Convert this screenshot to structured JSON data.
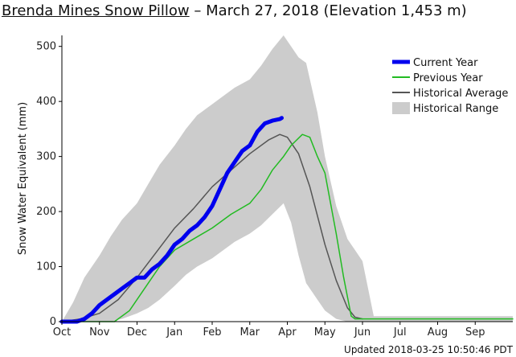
{
  "title": {
    "station": "Brenda Mines Snow Pillow",
    "rest": " – March 27, 2018 (Elevation 1,453 m)"
  },
  "footer": "Updated 2018-03-25 10:50:46 PDT",
  "chart_data": {
    "type": "line",
    "ylabel": "Snow Water Equivalent (mm)",
    "xlabel": "",
    "x_unit": "months from Oct 1",
    "ylim": [
      0,
      520
    ],
    "yticks": [
      0,
      100,
      200,
      300,
      400,
      500
    ],
    "xticks": [
      {
        "label": "Oct",
        "x": 0
      },
      {
        "label": "Nov",
        "x": 1
      },
      {
        "label": "Dec",
        "x": 2
      },
      {
        "label": "Jan",
        "x": 3
      },
      {
        "label": "Feb",
        "x": 4
      },
      {
        "label": "Mar",
        "x": 5
      },
      {
        "label": "Apr",
        "x": 6
      },
      {
        "label": "May",
        "x": 7
      },
      {
        "label": "Jun",
        "x": 8
      },
      {
        "label": "Jul",
        "x": 9
      },
      {
        "label": "Aug",
        "x": 10
      },
      {
        "label": "Sep",
        "x": 11
      }
    ],
    "xlim": [
      0,
      12
    ],
    "grid": false,
    "legend_position": "top-right",
    "legend": [
      {
        "label": "Current Year",
        "color": "#0000ee",
        "kind": "thick-line"
      },
      {
        "label": "Previous Year",
        "color": "#22bb22",
        "kind": "line"
      },
      {
        "label": "Historical Average",
        "color": "#555555",
        "kind": "line"
      },
      {
        "label": "Historical Range",
        "color": "#cccccc",
        "kind": "swatch"
      }
    ],
    "series": [
      {
        "name": "Historical Range",
        "color": "#cccccc",
        "kind": "band",
        "x": [
          0,
          0.3,
          0.6,
          1.0,
          1.3,
          1.6,
          2.0,
          2.3,
          2.6,
          3.0,
          3.3,
          3.6,
          4.0,
          4.3,
          4.6,
          5.0,
          5.3,
          5.6,
          5.9,
          6.1,
          6.3,
          6.5,
          6.8,
          7.0,
          7.3,
          7.6,
          7.8,
          8.0,
          8.3,
          12
        ],
        "lower": [
          0,
          0,
          0,
          0,
          0,
          5,
          15,
          25,
          40,
          65,
          85,
          100,
          115,
          130,
          145,
          160,
          175,
          195,
          215,
          180,
          120,
          70,
          40,
          20,
          5,
          0,
          0,
          0,
          0,
          0
        ],
        "upper": [
          0,
          35,
          80,
          120,
          155,
          185,
          215,
          250,
          285,
          320,
          350,
          375,
          395,
          410,
          425,
          440,
          465,
          495,
          520,
          500,
          480,
          470,
          380,
          300,
          210,
          150,
          130,
          110,
          10,
          10
        ]
      },
      {
        "name": "Historical Average",
        "color": "#555555",
        "width": 1.5,
        "x": [
          0,
          0.5,
          1.0,
          1.5,
          2.0,
          2.5,
          3.0,
          3.5,
          4.0,
          4.5,
          5.0,
          5.5,
          5.8,
          6.0,
          6.3,
          6.6,
          7.0,
          7.3,
          7.6,
          7.8,
          8.0
        ],
        "y": [
          0,
          5,
          15,
          40,
          80,
          125,
          170,
          205,
          245,
          275,
          305,
          330,
          340,
          335,
          305,
          245,
          140,
          75,
          25,
          8,
          5
        ]
      },
      {
        "name": "Previous Year",
        "color": "#22bb22",
        "width": 1.5,
        "x": [
          0,
          1.4,
          1.8,
          2.0,
          2.3,
          2.6,
          3.0,
          3.5,
          4.0,
          4.5,
          5.0,
          5.3,
          5.6,
          5.9,
          6.1,
          6.4,
          6.6,
          6.8,
          7.0,
          7.3,
          7.5,
          7.7,
          7.8,
          8.0,
          9.0,
          10.0,
          11.0,
          12.0
        ],
        "y": [
          0,
          0,
          20,
          40,
          70,
          100,
          130,
          150,
          170,
          195,
          215,
          240,
          275,
          300,
          320,
          340,
          335,
          300,
          270,
          160,
          80,
          10,
          5,
          5,
          5,
          5,
          5,
          5
        ]
      },
      {
        "name": "Current Year",
        "color": "#0000ee",
        "width": 5,
        "x": [
          0,
          0.4,
          0.6,
          0.8,
          1.0,
          1.2,
          1.4,
          1.6,
          1.8,
          2.0,
          2.2,
          2.4,
          2.6,
          2.8,
          3.0,
          3.2,
          3.4,
          3.6,
          3.8,
          4.0,
          4.2,
          4.4,
          4.6,
          4.8,
          5.0,
          5.2,
          5.4,
          5.6,
          5.8,
          5.85
        ],
        "y": [
          0,
          0,
          5,
          15,
          30,
          40,
          50,
          60,
          70,
          80,
          80,
          95,
          105,
          120,
          140,
          150,
          165,
          175,
          190,
          210,
          240,
          270,
          290,
          310,
          320,
          345,
          360,
          365,
          368,
          370
        ]
      }
    ]
  }
}
